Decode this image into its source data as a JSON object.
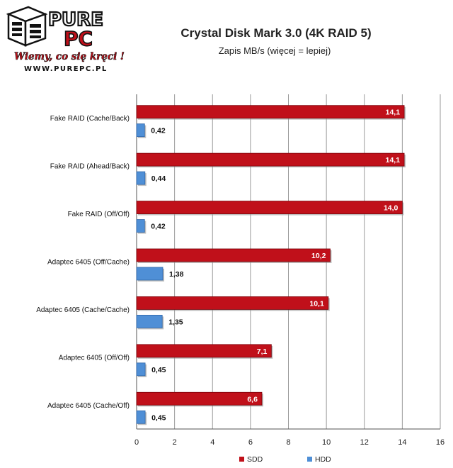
{
  "logo": {
    "brand_left": "PURE",
    "brand_right": "PC",
    "slogan": "Wiemy, co się kręci !",
    "url": "WWW.PUREPC.PL"
  },
  "chart_data": {
    "type": "bar",
    "orientation": "horizontal",
    "title": "Crystal Disk Mark 3.0 (4K RAID 5)",
    "subtitle": "Zapis MB/s (więcej = lepiej)",
    "categories": [
      "Fake RAID (Cache/Back)",
      "Fake RAID (Ahead/Back)",
      "Fake RAID (Off/Off)",
      "Adaptec 6405 (Off/Cache)",
      "Adaptec 6405 (Cache/Cache)",
      "Adaptec 6405 (Off/Off)",
      "Adaptec 6405 (Cache/Off)"
    ],
    "series": [
      {
        "name": "SDD",
        "color": "#c0101a",
        "values": [
          14.1,
          14.1,
          14.0,
          10.2,
          10.1,
          7.1,
          6.6
        ],
        "labels": [
          "14,1",
          "14,1",
          "14,0",
          "10,2",
          "10,1",
          "7,1",
          "6,6"
        ]
      },
      {
        "name": "HDD",
        "color": "#4f8fd6",
        "values": [
          0.42,
          0.44,
          0.42,
          1.38,
          1.35,
          0.45,
          0.45
        ],
        "labels": [
          "0,42",
          "0,44",
          "0,42",
          "1,38",
          "1,35",
          "0,45",
          "0,45"
        ]
      }
    ],
    "xlim": [
      0,
      16
    ],
    "xticks": [
      0,
      2,
      4,
      6,
      8,
      10,
      12,
      14,
      16
    ],
    "grid": true,
    "legend": "bottom-right"
  }
}
